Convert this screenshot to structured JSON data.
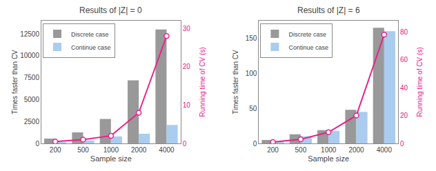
{
  "chart_data": [
    {
      "type": "bar",
      "title": "Results of |Z| = 0",
      "xlabel": "Sample size",
      "ylabel": "Times faster than CV",
      "y2label": "Running time of CV (s)",
      "categories": [
        "200",
        "500",
        "1000",
        "2000",
        "4000"
      ],
      "series": [
        {
          "name": "Discrete case",
          "color": "#999999",
          "values": [
            550,
            1250,
            2800,
            7200,
            13000
          ]
        },
        {
          "name": "Continue case",
          "color": "#aaccee",
          "values": [
            130,
            350,
            800,
            1100,
            2100
          ]
        },
        {
          "type": "line",
          "axis": "y2",
          "color": "#e8208a",
          "marker": "circle",
          "values": [
            0.5,
            1.0,
            2.0,
            8.0,
            28.0
          ]
        }
      ],
      "ylim": [
        0,
        14000
      ],
      "yticks": [
        0,
        2500,
        5000,
        7500,
        10000,
        12500
      ],
      "y2lim": [
        0,
        32
      ],
      "y2ticks": [
        0,
        10,
        20,
        30
      ],
      "grid": false,
      "legend": "upper left"
    },
    {
      "type": "bar",
      "title": "Results of |Z| = 6",
      "xlabel": "Sample size",
      "ylabel": "Times faster than CV",
      "y2label": "Running time of CV (s)",
      "categories": [
        "200",
        "500",
        "1000",
        "2000",
        "4000"
      ],
      "series": [
        {
          "name": "Discrete case",
          "color": "#999999",
          "values": [
            5,
            13,
            19,
            48,
            165
          ]
        },
        {
          "name": "Continue case",
          "color": "#aaccee",
          "values": [
            3,
            10,
            18,
            45,
            160
          ]
        },
        {
          "type": "line",
          "axis": "y2",
          "color": "#e8208a",
          "marker": "circle",
          "values": [
            1.0,
            3.0,
            8.0,
            20.0,
            78.0
          ]
        }
      ],
      "ylim": [
        0,
        175
      ],
      "yticks": [
        0,
        50,
        100,
        150
      ],
      "y2lim": [
        0,
        88
      ],
      "y2ticks": [
        0,
        20,
        40,
        60,
        80
      ],
      "grid": false,
      "legend": "upper left"
    }
  ]
}
